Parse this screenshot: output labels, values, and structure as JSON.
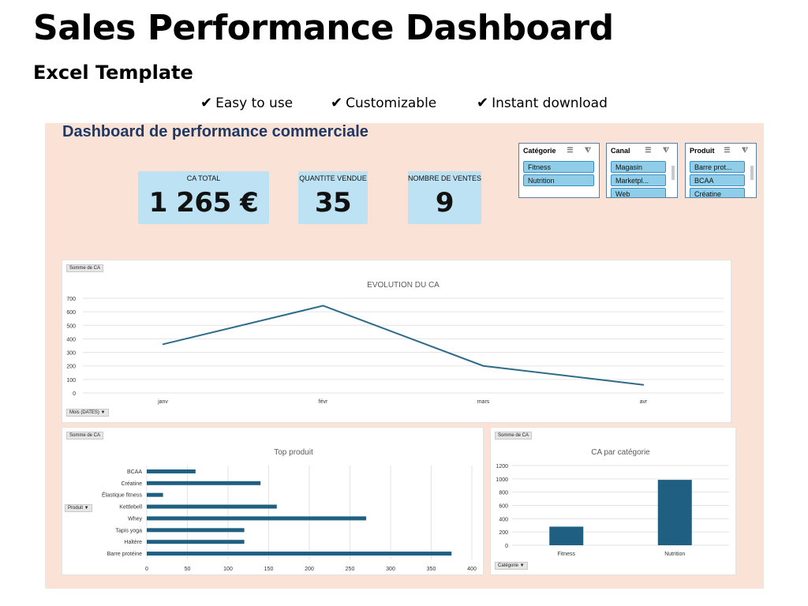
{
  "page": {
    "title": "Sales Performance Dashboard",
    "subtitle": "Excel Template",
    "features": [
      "Easy to use",
      "Customizable",
      "Instant download"
    ],
    "check_glyph": "✔"
  },
  "dashboard": {
    "title": "Dashboard de performance commerciale",
    "kpis": [
      {
        "label": "CA TOTAL",
        "value": "1 265 €"
      },
      {
        "label": "QUANTITE VENDUE",
        "value": "35"
      },
      {
        "label": "NOMBRE DE VENTES",
        "value": "9"
      }
    ],
    "slicers": [
      {
        "title": "Catégorie",
        "items": [
          "Fitness",
          "Nutrition"
        ]
      },
      {
        "title": "Canal",
        "items": [
          "Magasin",
          "Marketpl...",
          "Web"
        ]
      },
      {
        "title": "Produit",
        "items": [
          "Barre prot...",
          "BCAA",
          "Créatine"
        ]
      }
    ],
    "slicer_icons": "☰ ⧨",
    "colors": {
      "sheet_bg": "#fbe2d6",
      "kpi_bg": "#bde2f3",
      "bar": "#1f5f82",
      "line": "#2e6a8a",
      "slicer_btn": "#8fcde9"
    }
  },
  "chart_data": [
    {
      "type": "line",
      "field_tag": "Somme de CA",
      "axis_tag": "Mois (DATES)",
      "title": "EVOLUTION DU CA",
      "categories": [
        "janv",
        "févr",
        "mars",
        "avr"
      ],
      "values": [
        360,
        645,
        200,
        60
      ],
      "ylim": [
        0,
        700
      ],
      "yticks": [
        0,
        100,
        200,
        300,
        400,
        500,
        600,
        700
      ],
      "grid": true
    },
    {
      "type": "bar",
      "orientation": "horizontal",
      "field_tag": "Somme de CA",
      "axis_tag": "Produit",
      "title": "Top produit",
      "categories": [
        "BCAA",
        "Créatine",
        "Élastique fitness",
        "Kettlebell",
        "Whey",
        "Tapis yoga",
        "Haltère",
        "Barre protéine"
      ],
      "values": [
        60,
        140,
        20,
        160,
        270,
        120,
        120,
        375
      ],
      "xlim": [
        0,
        400
      ],
      "xticks": [
        0,
        50,
        100,
        150,
        200,
        250,
        300,
        350,
        400
      ],
      "grid": true
    },
    {
      "type": "bar",
      "field_tag": "Somme de CA",
      "axis_tag": "Catégorie",
      "title": "CA par catégorie",
      "categories": [
        "Fitness",
        "Nutrition"
      ],
      "values": [
        280,
        985
      ],
      "ylim": [
        0,
        1200
      ],
      "yticks": [
        0,
        200,
        400,
        600,
        800,
        1000,
        1200
      ],
      "grid": true
    }
  ]
}
